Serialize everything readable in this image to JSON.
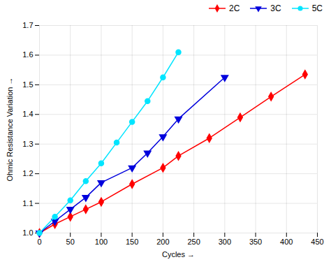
{
  "chart_data": {
    "type": "line",
    "title": "",
    "xlabel": "Cycles",
    "ylabel": "Ohmic Resistance Variation",
    "xlim": [
      0,
      450
    ],
    "xticks": [
      0,
      50,
      100,
      150,
      200,
      250,
      300,
      350,
      400,
      450
    ],
    "ylim": [
      1.0,
      1.7
    ],
    "yticks": [
      {
        "value": 1.0,
        "label": "1.0"
      },
      1.1,
      1.2,
      1.3,
      1.4,
      1.5,
      1.6,
      1.7
    ],
    "grid": true,
    "legend": "upper right",
    "series": [
      {
        "name": "2C",
        "color": "#ff0000",
        "marker": "diamond",
        "x": [
          0,
          25,
          50,
          75,
          100,
          150,
          200,
          225,
          275,
          325,
          375,
          430
        ],
        "values": [
          1.0,
          1.03,
          1.055,
          1.08,
          1.105,
          1.165,
          1.22,
          1.26,
          1.32,
          1.39,
          1.46,
          1.535
        ]
      },
      {
        "name": "3C",
        "color": "#0000dd",
        "marker": "triangle-down",
        "x": [
          0,
          25,
          50,
          75,
          100,
          150,
          175,
          200,
          225,
          300
        ],
        "values": [
          1.0,
          1.04,
          1.08,
          1.12,
          1.17,
          1.22,
          1.27,
          1.325,
          1.385,
          1.525
        ]
      },
      {
        "name": "5C",
        "color": "#00e5ff",
        "marker": "circle",
        "x": [
          0,
          25,
          50,
          75,
          100,
          125,
          150,
          175,
          200,
          225
        ],
        "values": [
          1.0,
          1.055,
          1.11,
          1.175,
          1.235,
          1.305,
          1.375,
          1.445,
          1.525,
          1.61
        ]
      }
    ]
  }
}
